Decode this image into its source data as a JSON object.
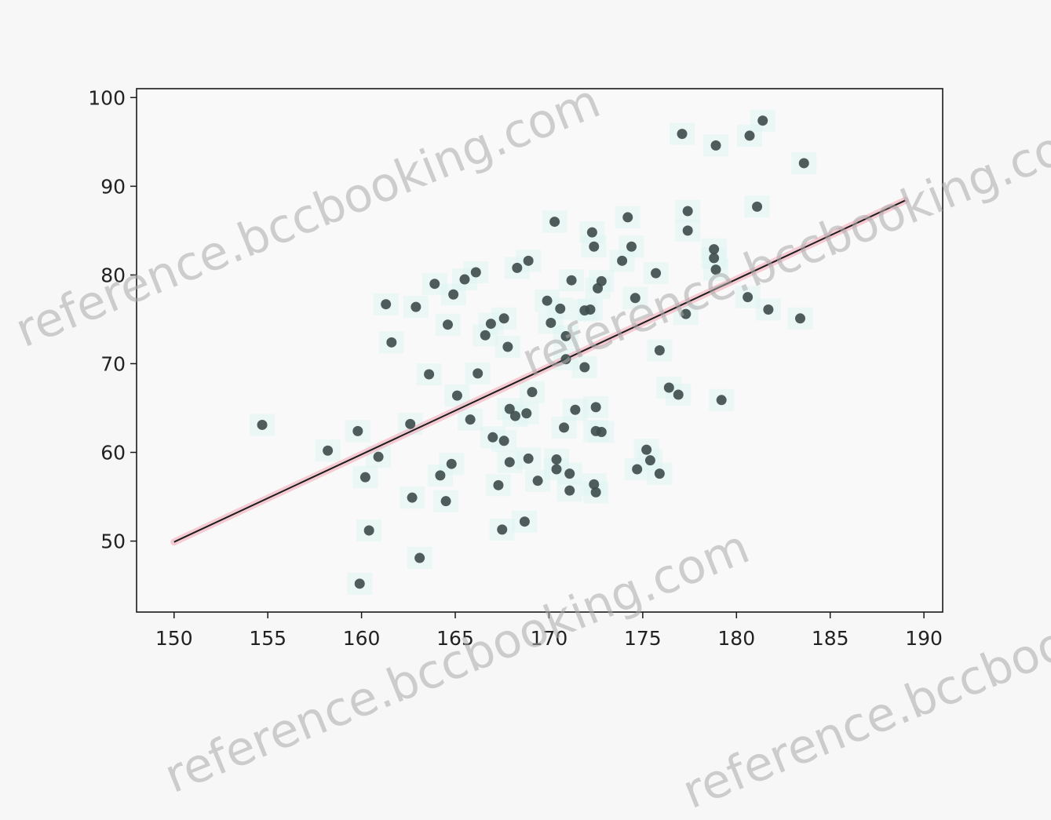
{
  "chart_data": {
    "type": "scatter",
    "title": "",
    "xlabel": "",
    "ylabel": "",
    "xlim": [
      148,
      191
    ],
    "ylim": [
      42,
      101
    ],
    "xticks": [
      "150",
      "155",
      "160",
      "165",
      "170",
      "175",
      "180",
      "185",
      "190"
    ],
    "yticks": [
      "50",
      "60",
      "70",
      "80",
      "90",
      "100"
    ],
    "grid": false,
    "legend": "none",
    "points": [
      [
        154.7,
        63.1
      ],
      [
        158.2,
        60.2
      ],
      [
        159.8,
        62.4
      ],
      [
        159.9,
        45.2
      ],
      [
        160.2,
        57.2
      ],
      [
        160.4,
        51.2
      ],
      [
        160.9,
        59.5
      ],
      [
        161.3,
        76.7
      ],
      [
        161.6,
        72.4
      ],
      [
        162.6,
        63.2
      ],
      [
        162.7,
        54.9
      ],
      [
        162.9,
        76.4
      ],
      [
        163.1,
        48.1
      ],
      [
        163.6,
        68.8
      ],
      [
        163.9,
        79.0
      ],
      [
        164.2,
        57.4
      ],
      [
        164.5,
        54.5
      ],
      [
        164.6,
        74.4
      ],
      [
        164.8,
        58.7
      ],
      [
        164.9,
        77.8
      ],
      [
        165.1,
        66.4
      ],
      [
        165.5,
        79.5
      ],
      [
        165.8,
        63.7
      ],
      [
        166.1,
        80.3
      ],
      [
        166.2,
        68.9
      ],
      [
        166.6,
        73.2
      ],
      [
        166.9,
        74.5
      ],
      [
        167.0,
        61.7
      ],
      [
        167.3,
        56.3
      ],
      [
        167.5,
        51.3
      ],
      [
        167.6,
        75.1
      ],
      [
        167.6,
        61.3
      ],
      [
        167.8,
        71.9
      ],
      [
        167.9,
        58.9
      ],
      [
        167.9,
        64.9
      ],
      [
        168.2,
        64.1
      ],
      [
        168.3,
        80.8
      ],
      [
        168.7,
        52.2
      ],
      [
        168.8,
        64.4
      ],
      [
        168.9,
        81.6
      ],
      [
        168.9,
        59.3
      ],
      [
        169.1,
        66.8
      ],
      [
        169.4,
        56.8
      ],
      [
        169.9,
        77.1
      ],
      [
        170.1,
        74.6
      ],
      [
        170.3,
        86.0
      ],
      [
        170.4,
        59.2
      ],
      [
        170.4,
        58.1
      ],
      [
        170.6,
        76.2
      ],
      [
        170.8,
        62.8
      ],
      [
        170.9,
        73.1
      ],
      [
        170.9,
        70.5
      ],
      [
        171.1,
        57.6
      ],
      [
        171.1,
        55.7
      ],
      [
        171.2,
        79.4
      ],
      [
        171.4,
        64.8
      ],
      [
        171.9,
        76.0
      ],
      [
        171.9,
        69.6
      ],
      [
        172.2,
        76.1
      ],
      [
        172.3,
        84.8
      ],
      [
        172.4,
        83.2
      ],
      [
        172.4,
        56.4
      ],
      [
        172.5,
        55.5
      ],
      [
        172.5,
        65.1
      ],
      [
        172.5,
        62.4
      ],
      [
        172.6,
        78.5
      ],
      [
        172.8,
        79.3
      ],
      [
        172.8,
        62.3
      ],
      [
        173.9,
        81.6
      ],
      [
        174.2,
        86.5
      ],
      [
        174.4,
        83.2
      ],
      [
        174.6,
        77.4
      ],
      [
        174.7,
        58.1
      ],
      [
        175.2,
        60.3
      ],
      [
        175.4,
        59.1
      ],
      [
        175.7,
        80.2
      ],
      [
        175.9,
        71.5
      ],
      [
        175.9,
        57.6
      ],
      [
        176.4,
        67.3
      ],
      [
        176.9,
        66.5
      ],
      [
        177.1,
        95.9
      ],
      [
        177.3,
        75.6
      ],
      [
        177.4,
        87.2
      ],
      [
        177.4,
        85.0
      ],
      [
        178.8,
        82.9
      ],
      [
        178.8,
        81.9
      ],
      [
        178.9,
        80.6
      ],
      [
        178.9,
        94.6
      ],
      [
        179.2,
        65.9
      ],
      [
        180.6,
        77.5
      ],
      [
        180.7,
        95.7
      ],
      [
        181.1,
        87.7
      ],
      [
        181.4,
        97.4
      ],
      [
        181.7,
        76.1
      ],
      [
        183.6,
        92.6
      ],
      [
        183.4,
        75.1
      ]
    ],
    "regression_line": {
      "x": [
        150,
        189
      ],
      "y": [
        49.9,
        88.4
      ]
    },
    "colors": {
      "points": "#3d4b4b",
      "highlight_fill": "#dff6f3",
      "fit_line": "#1e1e1e",
      "fit_glow": "#f2a5b5",
      "axes": "#1a1a1a",
      "plot_background": "#f9f9f9"
    }
  },
  "watermark": "reference.bccbooking.com"
}
